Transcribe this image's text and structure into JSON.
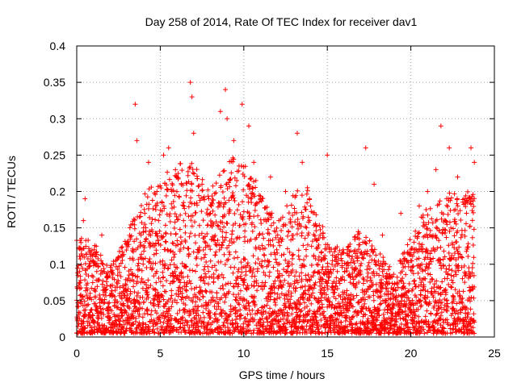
{
  "chart_data": {
    "type": "scatter",
    "title": "Day 258 of 2014, Rate Of TEC Index for receiver dav1",
    "xlabel": "GPS time / hours",
    "ylabel": "ROTI / TECUs",
    "xlim": [
      0,
      25
    ],
    "ylim": [
      0,
      0.4
    ],
    "x_ticks": [
      0,
      5,
      10,
      15,
      20,
      25
    ],
    "x_tick_labels": [
      "0",
      "5",
      "10",
      "15",
      "20",
      "25"
    ],
    "y_ticks": [
      0,
      0.05,
      0.1,
      0.15,
      0.2,
      0.25,
      0.3,
      0.35,
      0.4
    ],
    "y_tick_labels": [
      "0",
      "0.05",
      "0.1",
      "0.15",
      "0.2",
      "0.25",
      "0.3",
      "0.35",
      "0.4"
    ],
    "grid": true,
    "marker": "+",
    "series": [
      {
        "color": "#ff0000",
        "points": [
          [
            0.1,
            0.03
          ],
          [
            0.3,
            0.12
          ],
          [
            0.4,
            0.16
          ],
          [
            0.5,
            0.19
          ],
          [
            0.8,
            0.06
          ],
          [
            1.2,
            0.09
          ],
          [
            1.5,
            0.14
          ],
          [
            2.0,
            0.07
          ],
          [
            2.5,
            0.11
          ],
          [
            3.0,
            0.05
          ],
          [
            3.5,
            0.32
          ],
          [
            3.6,
            0.27
          ],
          [
            4.0,
            0.15
          ],
          [
            4.3,
            0.24
          ],
          [
            4.8,
            0.2
          ],
          [
            5.2,
            0.25
          ],
          [
            5.5,
            0.26
          ],
          [
            6.0,
            0.22
          ],
          [
            6.4,
            0.18
          ],
          [
            6.8,
            0.35
          ],
          [
            6.9,
            0.33
          ],
          [
            7.0,
            0.28
          ],
          [
            7.5,
            0.21
          ],
          [
            8.0,
            0.17
          ],
          [
            8.6,
            0.31
          ],
          [
            8.9,
            0.34
          ],
          [
            9.0,
            0.3
          ],
          [
            9.4,
            0.27
          ],
          [
            9.9,
            0.32
          ],
          [
            10.3,
            0.29
          ],
          [
            10.6,
            0.24
          ],
          [
            11.0,
            0.19
          ],
          [
            11.6,
            0.22
          ],
          [
            12.1,
            0.16
          ],
          [
            12.5,
            0.2
          ],
          [
            13.2,
            0.28
          ],
          [
            13.5,
            0.24
          ],
          [
            14.0,
            0.18
          ],
          [
            14.5,
            0.11
          ],
          [
            15.0,
            0.25
          ],
          [
            15.6,
            0.09
          ],
          [
            16.2,
            0.12
          ],
          [
            16.7,
            0.07
          ],
          [
            17.3,
            0.26
          ],
          [
            17.8,
            0.21
          ],
          [
            18.3,
            0.14
          ],
          [
            18.8,
            0.06
          ],
          [
            19.4,
            0.17
          ],
          [
            20.0,
            0.12
          ],
          [
            20.5,
            0.18
          ],
          [
            21.0,
            0.2
          ],
          [
            21.5,
            0.23
          ],
          [
            21.8,
            0.29
          ],
          [
            22.3,
            0.26
          ],
          [
            22.8,
            0.22
          ],
          [
            23.2,
            0.19
          ],
          [
            23.6,
            0.26
          ],
          [
            23.8,
            0.24
          ]
        ]
      }
    ],
    "density_envelope": {
      "description_hours": [
        0,
        1,
        2,
        3,
        4,
        5,
        6,
        7,
        8,
        9,
        10,
        11,
        12,
        13,
        14,
        15,
        16,
        17,
        18,
        19,
        20,
        21,
        22,
        23,
        23.8
      ],
      "upper_typical": [
        0.14,
        0.13,
        0.1,
        0.14,
        0.2,
        0.22,
        0.24,
        0.24,
        0.2,
        0.25,
        0.24,
        0.21,
        0.16,
        0.2,
        0.21,
        0.13,
        0.12,
        0.15,
        0.12,
        0.09,
        0.14,
        0.18,
        0.2,
        0.2,
        0.2
      ],
      "lower_typical": [
        0.02,
        0.02,
        0.02,
        0.02,
        0.02,
        0.02,
        0.02,
        0.02,
        0.02,
        0.02,
        0.02,
        0.02,
        0.02,
        0.02,
        0.02,
        0.02,
        0.02,
        0.02,
        0.02,
        0.02,
        0.02,
        0.02,
        0.02,
        0.02,
        0.02
      ]
    },
    "colors": {
      "marker": "#ff0000",
      "grid": "#a0a0a0",
      "axis": "#000000"
    }
  }
}
